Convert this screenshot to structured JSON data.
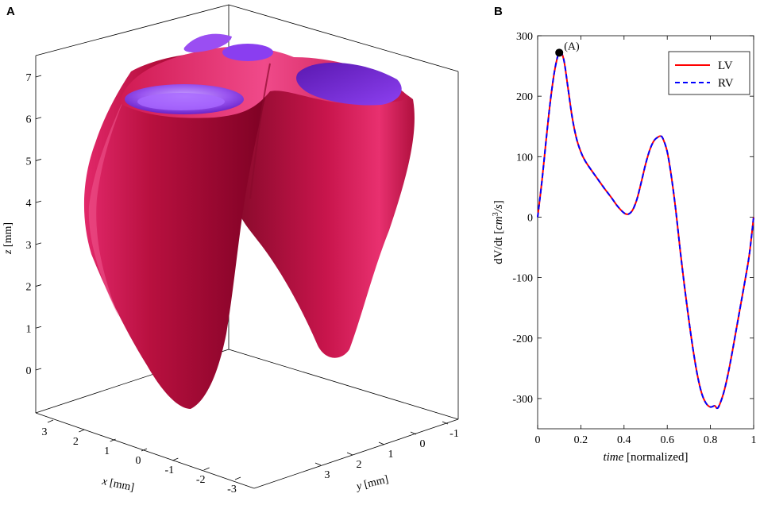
{
  "panel_a": {
    "label": "A",
    "xlabel_var": "x",
    "xlabel_unit": "[mm]",
    "ylabel_var": "y",
    "ylabel_unit": "[mm]",
    "zlabel_var": "z",
    "zlabel_unit": "[mm]",
    "x_ticks": [
      "3",
      "2",
      "1",
      "0",
      "-1",
      "-2",
      "-3"
    ],
    "y_ticks": [
      "-1",
      "0",
      "1",
      "2",
      "3"
    ],
    "z_ticks": [
      "0",
      "1",
      "2",
      "3",
      "4",
      "5",
      "6",
      "7"
    ],
    "colors": {
      "myocardium": "#b0103e",
      "myocardium_dark": "#7a0022",
      "highlight": "#e6286a",
      "valve": "#7b2fd8",
      "valve_light": "#a864ff"
    }
  },
  "panel_b": {
    "label": "B",
    "annotation": "(A)"
  },
  "chart_data": {
    "type": "line",
    "xlabel_var": "time",
    "xlabel_unit": "[normalized]",
    "ylabel_main": "dV/dt",
    "ylabel_unit_base": "cm",
    "ylabel_unit_exp": "3",
    "ylabel_unit_tail": "/s",
    "xlim": [
      0,
      1
    ],
    "ylim": [
      -350,
      300
    ],
    "x_ticks": [
      0,
      0.2,
      0.4,
      0.6,
      0.8,
      1
    ],
    "x_tick_labels": [
      "0",
      "0.2",
      "0.4",
      "0.6",
      "0.8",
      "1"
    ],
    "y_ticks": [
      -300,
      -200,
      -100,
      0,
      100,
      200,
      300
    ],
    "y_tick_labels": [
      "-300",
      "-200",
      "-100",
      "0",
      "100",
      "200",
      "300"
    ],
    "grid": false,
    "legend_position": "top-right",
    "marker_point": {
      "x": 0.1,
      "y": 272
    },
    "series": [
      {
        "name": "LV",
        "color": "#ff0000",
        "style": "solid",
        "x": [
          0,
          0.02,
          0.04,
          0.06,
          0.08,
          0.1,
          0.12,
          0.14,
          0.16,
          0.18,
          0.2,
          0.22,
          0.25,
          0.28,
          0.31,
          0.34,
          0.37,
          0.4,
          0.42,
          0.44,
          0.46,
          0.48,
          0.5,
          0.52,
          0.54,
          0.56,
          0.57,
          0.58,
          0.6,
          0.62,
          0.64,
          0.66,
          0.68,
          0.7,
          0.72,
          0.74,
          0.76,
          0.78,
          0.8,
          0.82,
          0.83,
          0.84,
          0.86,
          0.88,
          0.9,
          0.92,
          0.94,
          0.96,
          0.98,
          1.0
        ],
        "y": [
          0,
          60,
          130,
          195,
          245,
          272,
          262,
          215,
          165,
          130,
          108,
          93,
          77,
          62,
          47,
          33,
          18,
          7,
          5,
          12,
          30,
          58,
          88,
          112,
          127,
          133,
          134,
          130,
          108,
          65,
          10,
          -55,
          -115,
          -170,
          -220,
          -262,
          -292,
          -308,
          -314,
          -312,
          -316,
          -312,
          -292,
          -262,
          -225,
          -185,
          -145,
          -105,
          -62,
          0
        ]
      },
      {
        "name": "RV",
        "color": "#0000ff",
        "style": "dashed",
        "x": [
          0,
          0.02,
          0.04,
          0.06,
          0.08,
          0.1,
          0.12,
          0.14,
          0.16,
          0.18,
          0.2,
          0.22,
          0.25,
          0.28,
          0.31,
          0.34,
          0.37,
          0.4,
          0.42,
          0.44,
          0.46,
          0.48,
          0.5,
          0.52,
          0.54,
          0.56,
          0.57,
          0.58,
          0.6,
          0.62,
          0.64,
          0.66,
          0.68,
          0.7,
          0.72,
          0.74,
          0.76,
          0.78,
          0.8,
          0.82,
          0.83,
          0.84,
          0.86,
          0.88,
          0.9,
          0.92,
          0.94,
          0.96,
          0.98,
          1.0
        ],
        "y": [
          0,
          60,
          130,
          195,
          245,
          272,
          262,
          215,
          165,
          130,
          108,
          93,
          77,
          62,
          47,
          33,
          18,
          7,
          5,
          12,
          30,
          58,
          88,
          112,
          127,
          133,
          134,
          130,
          108,
          65,
          10,
          -55,
          -115,
          -170,
          -220,
          -262,
          -292,
          -308,
          -314,
          -312,
          -316,
          -312,
          -292,
          -262,
          -225,
          -185,
          -145,
          -105,
          -62,
          0
        ]
      }
    ]
  }
}
